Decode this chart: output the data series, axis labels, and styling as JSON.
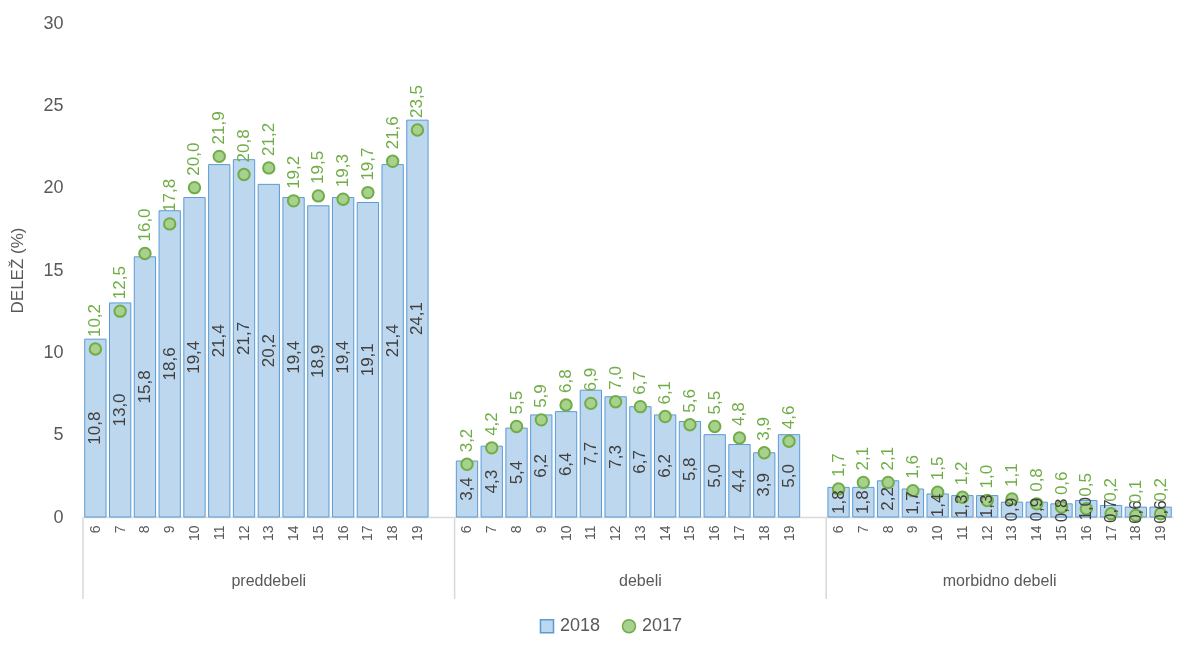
{
  "chart_data": {
    "type": "bar",
    "ylabel": "DELEŽ (%)",
    "categories": [
      "6",
      "7",
      "8",
      "9",
      "10",
      "11",
      "12",
      "13",
      "14",
      "15",
      "16",
      "17",
      "18",
      "19",
      null,
      "6",
      "7",
      "8",
      "9",
      "10",
      "11",
      "12",
      "13",
      "14",
      "15",
      "16",
      "17",
      "18",
      "19",
      null,
      "6",
      "7",
      "8",
      "9",
      "10",
      "11",
      "12",
      "13",
      "14",
      "15",
      "16",
      "17",
      "18",
      "19"
    ],
    "series": [
      {
        "name": "2018",
        "color": "#bdd7ee",
        "values": [
          10.8,
          13.0,
          15.8,
          18.6,
          19.4,
          21.4,
          21.7,
          20.2,
          19.4,
          18.9,
          19.4,
          19.1,
          21.4,
          24.1,
          null,
          3.4,
          4.3,
          5.4,
          6.2,
          6.4,
          7.7,
          7.3,
          6.7,
          6.2,
          5.8,
          5.0,
          4.4,
          3.9,
          5.0,
          null,
          1.8,
          1.8,
          2.2,
          1.7,
          1.4,
          1.3,
          1.3,
          0.9,
          0.9,
          0.8,
          1.0,
          0.7,
          0.6,
          0.6
        ],
        "value_labels": [
          "10,8",
          "13,0",
          "15,8",
          "18,6",
          "19,4",
          "21,4",
          "21,7",
          "20,2",
          "19,4",
          "18,9",
          "19,4",
          "19,1",
          "21,4",
          "24,1",
          null,
          "3,4",
          "4,3",
          "5,4",
          "6,2",
          "6,4",
          "7,7",
          "7,3",
          "6,7",
          "6,2",
          "5,8",
          "5,0",
          "4,4",
          "3,9",
          "5,0",
          null,
          "1,8",
          "1,8",
          "2,2",
          "1,7",
          "1,4",
          "1,3",
          "1,3",
          "0,9",
          "0,9",
          "0,8",
          "1,0",
          "0,7",
          "0,6",
          "0,6"
        ]
      },
      {
        "name": "2017",
        "type": "scatter",
        "color": "#a9d18e",
        "values": [
          10.2,
          12.5,
          16.0,
          17.8,
          20.0,
          21.9,
          20.8,
          21.2,
          19.2,
          19.5,
          19.3,
          19.7,
          21.6,
          23.5,
          null,
          3.2,
          4.2,
          5.5,
          5.9,
          6.8,
          6.9,
          7.0,
          6.7,
          6.1,
          5.6,
          5.5,
          4.8,
          3.9,
          4.6,
          null,
          1.7,
          2.1,
          2.1,
          1.6,
          1.5,
          1.2,
          1.0,
          1.1,
          0.8,
          0.6,
          0.5,
          0.2,
          0.1,
          0.2
        ],
        "value_labels": [
          "10,2",
          "12,5",
          "16,0",
          "17,8",
          "20,0",
          "21,9",
          "20,8",
          "21,2",
          "19,2",
          "19,5",
          "19,3",
          "19,7",
          "21,6",
          "23,5",
          null,
          "3,2",
          "4,2",
          "5,5",
          "5,9",
          "6,8",
          "6,9",
          "7,0",
          "6,7",
          "6,1",
          "5,6",
          "5,5",
          "4,8",
          "3,9",
          "4,6",
          null,
          "1,7",
          "2,1",
          "2,1",
          "1,6",
          "1,5",
          "1,2",
          "1,0",
          "1,1",
          "0,8",
          "0,6",
          "0,5",
          "0,2",
          "0,1",
          "0,2"
        ]
      }
    ],
    "ylim": [
      0,
      30
    ],
    "yticks": [
      0,
      5,
      10,
      15,
      20,
      25,
      30
    ],
    "grid": false,
    "legend": "bottom",
    "marker": "circle",
    "annotations": [
      "preddebeli",
      "debeli",
      "morbidno debeli"
    ]
  }
}
